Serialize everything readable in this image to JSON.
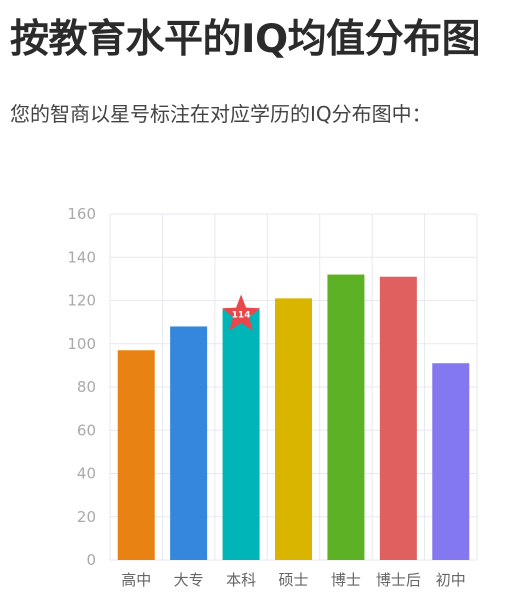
{
  "page": {
    "title": "按教育水平的IQ均值分布图",
    "subtitle": "您的智商以星号标注在对应学历的IQ分布图中："
  },
  "chart_data": {
    "type": "bar",
    "title": "",
    "xlabel": "",
    "ylabel": "",
    "categories": [
      "高中",
      "大专",
      "本科",
      "硕士",
      "博士",
      "博士后",
      "初中"
    ],
    "values": [
      97,
      108,
      116,
      121,
      132,
      131,
      91
    ],
    "colors": [
      "#e88313",
      "#3487dd",
      "#00b5b8",
      "#d9b500",
      "#5cb125",
      "#e06060",
      "#8478f0"
    ],
    "ylim": [
      0,
      160
    ],
    "yticks": [
      0,
      20,
      40,
      60,
      80,
      100,
      120,
      140,
      160
    ],
    "grid": true,
    "marker": {
      "category": "本科",
      "value": 114,
      "label": "114",
      "color": "#e8474b",
      "shape": "star"
    }
  }
}
